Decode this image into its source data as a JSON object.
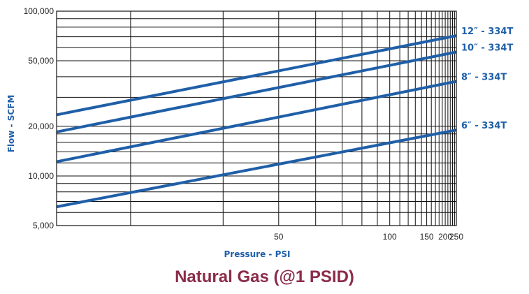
{
  "chart_data": {
    "type": "line",
    "title": "Natural Gas (@1 PSID)",
    "xlabel": "Pressure - PSI",
    "ylabel": "Flow - SCFM",
    "xscale": "reciprocal",
    "yscale": "log",
    "xlim": [
      25,
      250
    ],
    "ylim": [
      5000,
      100000
    ],
    "x_ticks": [
      50,
      100,
      150,
      200,
      250
    ],
    "x_tick_labels": [
      "50",
      "100",
      "150",
      "200",
      "250"
    ],
    "y_ticks": [
      5000,
      10000,
      20000,
      50000,
      100000
    ],
    "y_tick_labels": [
      "5,000",
      "10,000",
      "20,000",
      "50,000",
      "100,000"
    ],
    "x_grid": [
      30,
      40,
      50,
      60,
      70,
      80,
      90,
      100,
      110,
      120,
      130,
      140,
      150,
      160,
      170,
      180,
      190,
      200,
      210,
      220,
      230,
      240,
      250
    ],
    "y_grid": [
      5000,
      6000,
      7000,
      8000,
      9000,
      10000,
      12000,
      14000,
      16000,
      18000,
      20000,
      30000,
      40000,
      50000,
      60000,
      70000,
      80000,
      90000,
      100000
    ],
    "grid": true,
    "legend": "right",
    "series": [
      {
        "name": "12″ - 334T",
        "x": [
          25,
          250
        ],
        "y": [
          23500,
          71000
        ]
      },
      {
        "name": "10″ - 334T",
        "x": [
          25,
          250
        ],
        "y": [
          18500,
          56500
        ]
      },
      {
        "name": "8″ - 334T",
        "x": [
          25,
          250
        ],
        "y": [
          12200,
          37500
        ]
      },
      {
        "name": "6″ - 334T",
        "x": [
          25,
          250
        ],
        "y": [
          6500,
          19000
        ]
      }
    ],
    "colors": {
      "line": "#1f5fa8",
      "label": "#1f5fa8",
      "title": "#8b2c4a",
      "grid": "#111111"
    }
  }
}
